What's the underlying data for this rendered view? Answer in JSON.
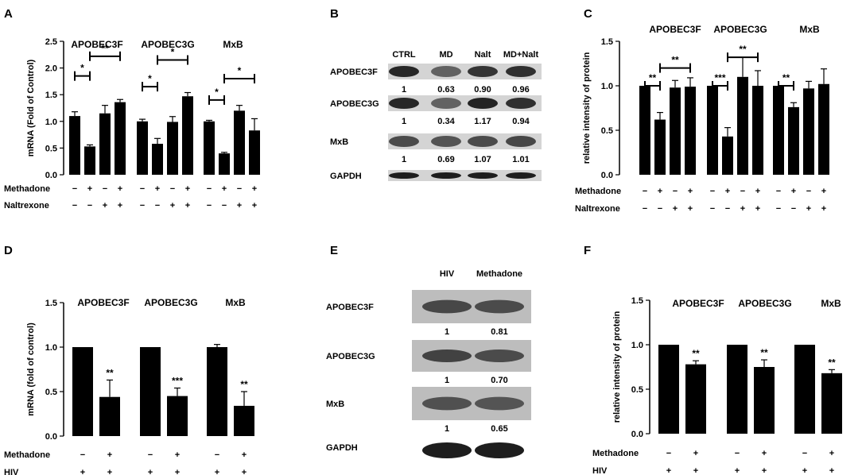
{
  "panels": {
    "A": {
      "letter": "A",
      "conditions": [
        {
          "label": "Methadone",
          "signs": [
            "−",
            "+",
            "−",
            "+"
          ]
        },
        {
          "label": "Naltrexone",
          "signs": [
            "−",
            "−",
            "+",
            "+"
          ]
        }
      ]
    },
    "B": {
      "letter": "B"
    },
    "C": {
      "letter": "C",
      "conditions": [
        {
          "label": "Methadone",
          "signs": [
            "−",
            "+",
            "−",
            "+"
          ]
        },
        {
          "label": "Naltrexone",
          "signs": [
            "−",
            "−",
            "+",
            "+"
          ]
        }
      ]
    },
    "D": {
      "letter": "D",
      "conditions": [
        {
          "label": "Methadone",
          "signs": [
            "−",
            "+"
          ]
        },
        {
          "label": "HIV",
          "signs": [
            "+",
            "+"
          ]
        }
      ]
    },
    "E": {
      "letter": "E"
    },
    "F": {
      "letter": "F",
      "conditions": [
        {
          "label": "Methadone",
          "signs": [
            "−",
            "+"
          ]
        },
        {
          "label": "HIV",
          "signs": [
            "+",
            "+"
          ]
        }
      ]
    }
  },
  "chart_data": [
    {
      "panel": "A",
      "type": "bar",
      "ylabel": "mRNA (Fold of Control)",
      "ylim": [
        0,
        2.5
      ],
      "yticks": [
        "0.0",
        "0.5",
        "1.0",
        "1.5",
        "2.0",
        "2.5"
      ],
      "groups": [
        {
          "name": "APOBEC3F",
          "values": [
            1.1,
            0.53,
            1.15,
            1.36
          ],
          "errors": [
            0.08,
            0.03,
            0.15,
            0.05
          ]
        },
        {
          "name": "APOBEC3G",
          "values": [
            1.0,
            0.58,
            0.99,
            1.47
          ],
          "errors": [
            0.04,
            0.1,
            0.1,
            0.07
          ]
        },
        {
          "name": "MxB",
          "values": [
            1.0,
            0.4,
            1.2,
            0.83
          ],
          "errors": [
            0.02,
            0.02,
            0.1,
            0.22
          ]
        }
      ],
      "significance": [
        {
          "group": 0,
          "from": 0,
          "to": 1,
          "y": 1.85,
          "label": "*"
        },
        {
          "group": 0,
          "from": 1,
          "to": 3,
          "y": 2.22,
          "label": "**"
        },
        {
          "group": 1,
          "from": 0,
          "to": 1,
          "y": 1.65,
          "label": "*"
        },
        {
          "group": 1,
          "from": 1,
          "to": 3,
          "y": 2.15,
          "label": "*"
        },
        {
          "group": 2,
          "from": 0,
          "to": 1,
          "y": 1.4,
          "label": "*"
        },
        {
          "group": 2,
          "from": 1,
          "to": 3,
          "y": 1.8,
          "label": "*"
        }
      ]
    },
    {
      "panel": "C",
      "type": "bar",
      "ylabel": "relative intensity of protein",
      "ylim": [
        0,
        1.5
      ],
      "yticks": [
        "0.0",
        "0.5",
        "1.0",
        "1.5"
      ],
      "groups": [
        {
          "name": "APOBEC3F",
          "values": [
            1.0,
            0.62,
            0.98,
            0.99
          ],
          "errors": [
            0.0,
            0.08,
            0.08,
            0.1
          ]
        },
        {
          "name": "APOBEC3G",
          "values": [
            1.0,
            0.43,
            1.1,
            1.0
          ],
          "errors": [
            0.0,
            0.1,
            0.22,
            0.17
          ]
        },
        {
          "name": "MxB",
          "values": [
            1.0,
            0.76,
            0.97,
            1.02
          ],
          "errors": [
            0.0,
            0.05,
            0.08,
            0.17
          ]
        }
      ],
      "significance": [
        {
          "group": 0,
          "from": 0,
          "to": 1,
          "y": 1.0,
          "label": "**"
        },
        {
          "group": 0,
          "from": 1,
          "to": 3,
          "y": 1.2,
          "label": "**"
        },
        {
          "group": 1,
          "from": 0,
          "to": 1,
          "y": 1.0,
          "label": "***"
        },
        {
          "group": 1,
          "from": 1,
          "to": 3,
          "y": 1.32,
          "label": "**"
        },
        {
          "group": 2,
          "from": 0,
          "to": 1,
          "y": 1.0,
          "label": "**"
        }
      ]
    },
    {
      "panel": "D",
      "type": "bar",
      "ylabel": "mRNA (fold of control)",
      "ylim": [
        0,
        1.5
      ],
      "yticks": [
        "0.0",
        "0.5",
        "1.0",
        "1.5"
      ],
      "groups": [
        {
          "name": "APOBEC3F",
          "values": [
            1.0,
            0.44
          ],
          "errors": [
            0.0,
            0.19
          ],
          "stars": [
            "",
            "**"
          ]
        },
        {
          "name": "APOBEC3G",
          "values": [
            1.0,
            0.45
          ],
          "errors": [
            0.0,
            0.09
          ],
          "stars": [
            "",
            "***"
          ]
        },
        {
          "name": "MxB",
          "values": [
            1.0,
            0.34
          ],
          "errors": [
            0.03,
            0.16
          ],
          "stars": [
            "",
            "**"
          ]
        }
      ]
    },
    {
      "panel": "F",
      "type": "bar",
      "ylabel": "relative intensity of protein",
      "ylim": [
        0,
        1.5
      ],
      "yticks": [
        "0.0",
        "0.5",
        "1.0",
        "1.5"
      ],
      "groups": [
        {
          "name": "APOBEC3F",
          "values": [
            1.0,
            0.78
          ],
          "errors": [
            0.0,
            0.04
          ],
          "stars": [
            "",
            "**"
          ]
        },
        {
          "name": "APOBEC3G",
          "values": [
            1.0,
            0.75
          ],
          "errors": [
            0.0,
            0.08
          ],
          "stars": [
            "",
            "**"
          ]
        },
        {
          "name": "MxB",
          "values": [
            1.0,
            0.68
          ],
          "errors": [
            0.0,
            0.04
          ],
          "stars": [
            "",
            "**"
          ]
        }
      ]
    }
  ],
  "blots": {
    "B": {
      "columns": [
        "CTRL",
        "MD",
        "Nalt",
        "MD+Nalt"
      ],
      "rows": [
        {
          "label": "APOBEC3F",
          "values": [
            "1",
            "0.63",
            "0.90",
            "0.96"
          ]
        },
        {
          "label": "APOBEC3G",
          "values": [
            "1",
            "0.34",
            "1.17",
            "0.94"
          ]
        },
        {
          "label": "MxB",
          "values": [
            "1",
            "0.69",
            "1.07",
            "1.01"
          ]
        },
        {
          "label": "GAPDH",
          "values": []
        }
      ]
    },
    "E": {
      "columns": [
        "HIV",
        "Methadone"
      ],
      "rows": [
        {
          "label": "APOBEC3F",
          "values": [
            "1",
            "0.81"
          ]
        },
        {
          "label": "APOBEC3G",
          "values": [
            "1",
            "0.70"
          ]
        },
        {
          "label": "MxB",
          "values": [
            "1",
            "0.65"
          ]
        },
        {
          "label": "GAPDH",
          "values": []
        }
      ]
    }
  }
}
